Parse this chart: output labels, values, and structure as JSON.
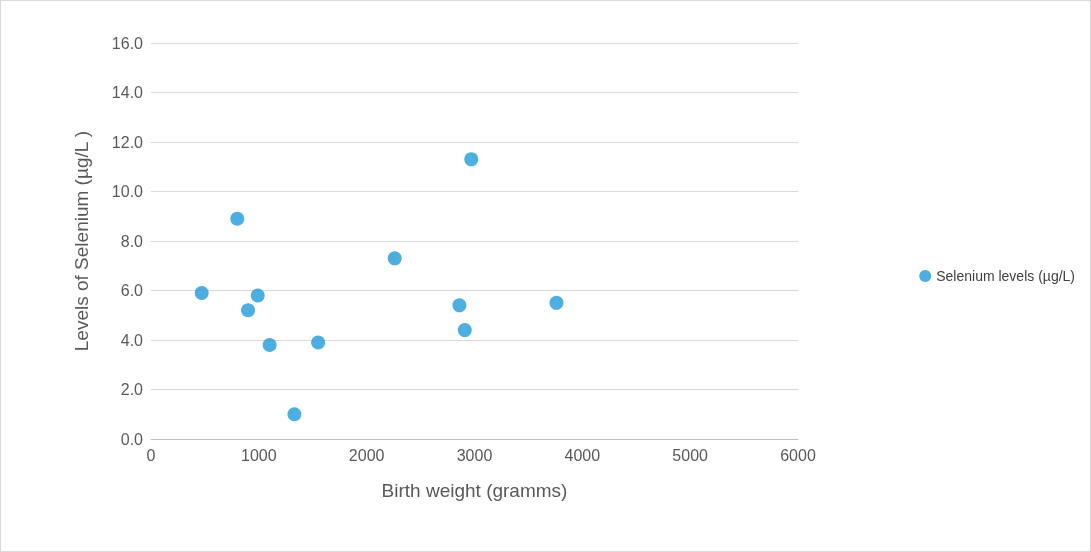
{
  "chart_data": {
    "type": "scatter",
    "xlabel": "Birth weight (gramms)",
    "ylabel": "Levels of Selenium (µg/L )",
    "x": [
      470,
      800,
      900,
      990,
      1100,
      1330,
      1550,
      2260,
      2860,
      2910,
      2970,
      3760
    ],
    "series": [
      {
        "name": "Selenium levels (µg/L)",
        "color": "#1f9bd7",
        "values": [
          5.9,
          8.9,
          5.2,
          5.8,
          3.8,
          1.0,
          3.9,
          7.3,
          5.4,
          4.4,
          11.3,
          5.5
        ]
      }
    ],
    "xlim": [
      0,
      6000
    ],
    "xticks": [
      0,
      1000,
      2000,
      3000,
      4000,
      5000,
      6000
    ],
    "ylim": [
      0,
      16
    ],
    "yticks": [
      {
        "value": 0,
        "label": "0.0"
      },
      {
        "value": 2,
        "label": "2.0"
      },
      {
        "value": 4,
        "label": "4.0"
      },
      {
        "value": 6,
        "label": "6.0"
      },
      {
        "value": 8,
        "label": "8.0"
      },
      {
        "value": 10,
        "label": "10.0"
      },
      {
        "value": 12,
        "label": "12.0"
      },
      {
        "value": 14,
        "label": "14.0"
      },
      {
        "value": 16,
        "label": "16.0"
      }
    ],
    "grid": "y",
    "legend": "right",
    "marker": "circle"
  }
}
